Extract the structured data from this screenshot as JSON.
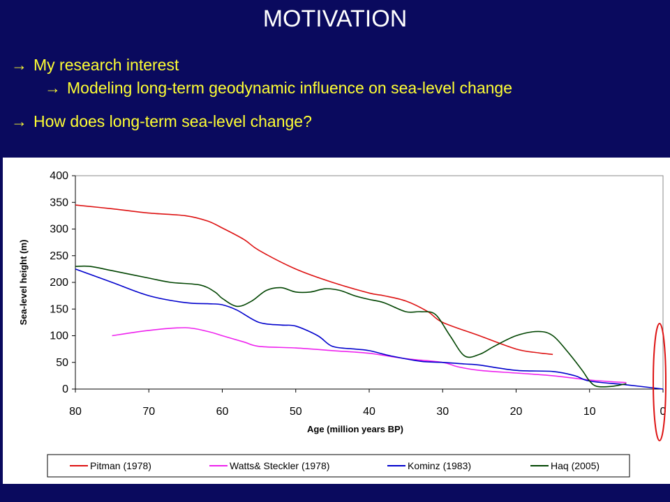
{
  "slide": {
    "title": "MOTIVATION",
    "bullets": [
      {
        "arrow": "→",
        "text": "My research interest"
      },
      {
        "arrow": "→",
        "text": "Modeling long-term geodynamic influence on sea-level change"
      },
      {
        "arrow": "→",
        "text": "How does long-term sea-level change?"
      }
    ]
  },
  "colors": {
    "background": "#0a0a5e",
    "bullet_text": "#ffff33",
    "title_text": "#ffffff",
    "highlight": "#dd1111"
  },
  "chart_data": {
    "type": "line",
    "title": "",
    "xlabel": "Age (million years BP)",
    "ylabel": "Sea-level height (m)",
    "xlim": [
      80,
      0
    ],
    "ylim": [
      0,
      400
    ],
    "xticks": [
      "80",
      "70",
      "60",
      "50",
      "40",
      "30",
      "20",
      "10",
      "0"
    ],
    "yticks": [
      "0",
      "50",
      "100",
      "150",
      "200",
      "250",
      "300",
      "350",
      "400"
    ],
    "legend_position": "bottom",
    "grid": false,
    "series": [
      {
        "name": "Pitman (1978)",
        "color": "#dd1111",
        "x": [
          80,
          75,
          70,
          65,
          62,
          60,
          57,
          55,
          50,
          45,
          40,
          38,
          35,
          32,
          30,
          25,
          20,
          17,
          15
        ],
        "y": [
          345,
          338,
          330,
          325,
          315,
          302,
          280,
          260,
          225,
          200,
          180,
          175,
          165,
          145,
          125,
          100,
          75,
          68,
          65
        ]
      },
      {
        "name": "Watts& Steckler (1978)",
        "color": "#ee22ee",
        "x": [
          75,
          70,
          65,
          62,
          60,
          57,
          55,
          50,
          45,
          40,
          35,
          30,
          28,
          25,
          20,
          15,
          10,
          5
        ],
        "y": [
          100,
          110,
          115,
          108,
          100,
          88,
          80,
          77,
          72,
          67,
          57,
          50,
          42,
          35,
          30,
          25,
          17,
          12
        ]
      },
      {
        "name": "Kominz (1983)",
        "color": "#0000cc",
        "x": [
          80,
          75,
          70,
          65,
          62,
          60,
          58,
          55,
          52,
          50,
          47,
          45,
          42,
          40,
          37,
          33,
          30,
          27,
          25,
          20,
          15,
          12,
          10,
          5,
          0
        ],
        "y": [
          225,
          200,
          175,
          162,
          160,
          158,
          148,
          125,
          120,
          118,
          100,
          80,
          75,
          72,
          62,
          52,
          50,
          47,
          45,
          35,
          33,
          25,
          15,
          8,
          0
        ]
      },
      {
        "name": "Haq (2005)",
        "color": "#004400",
        "x": [
          80,
          78,
          75,
          70,
          67,
          63,
          61,
          60,
          58,
          56,
          54,
          52,
          50,
          48,
          46,
          44,
          42,
          40,
          38,
          35,
          33,
          31,
          29,
          27,
          25,
          23,
          20,
          17,
          15,
          13,
          11,
          10,
          9,
          7,
          5
        ],
        "y": [
          230,
          230,
          222,
          208,
          200,
          195,
          182,
          170,
          155,
          165,
          185,
          190,
          182,
          182,
          188,
          185,
          175,
          168,
          162,
          145,
          145,
          140,
          100,
          62,
          65,
          80,
          100,
          108,
          100,
          70,
          35,
          15,
          5,
          5,
          10
        ]
      }
    ],
    "annotations": [
      {
        "type": "ellipse-highlight",
        "target_x": 0,
        "color": "#dd1111"
      }
    ]
  }
}
